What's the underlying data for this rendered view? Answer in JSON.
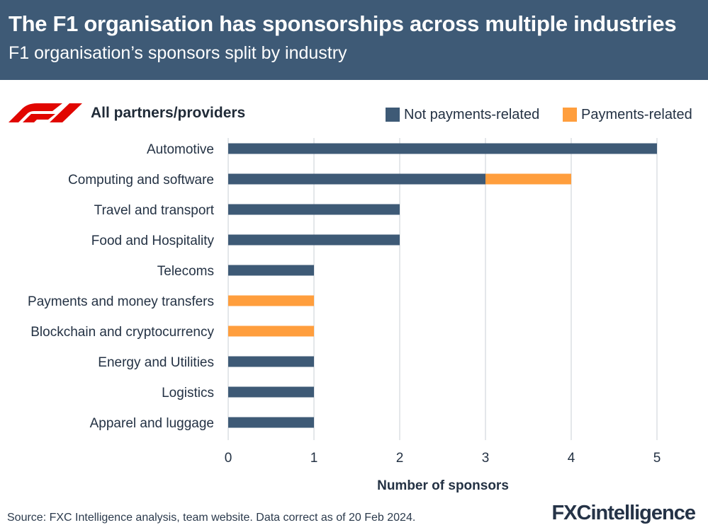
{
  "header": {
    "title": "The F1 organisation has sponsorships across multiple industries",
    "subtitle": "F1 organisation’s sponsors split by industry"
  },
  "chart_heading": "All partners/providers",
  "logo": {
    "name": "f1-logo",
    "color": "#e10600",
    "text": "F1"
  },
  "legend": [
    {
      "label": "Not payments-related",
      "color": "#3e5a76"
    },
    {
      "label": "Payments-related",
      "color": "#ff9e3d"
    }
  ],
  "chart_data": {
    "type": "bar",
    "orientation": "horizontal",
    "stacked": true,
    "categories": [
      "Automotive",
      "Computing and software",
      "Travel and transport",
      "Food and Hospitality",
      "Telecoms",
      "Payments and money transfers",
      "Blockchain and cryptocurrency",
      "Energy and Utilities",
      "Logistics",
      "Apparel and luggage"
    ],
    "series": [
      {
        "name": "Not payments-related",
        "color": "#3e5a76",
        "values": [
          5,
          3,
          2,
          2,
          1,
          0,
          0,
          1,
          1,
          1
        ]
      },
      {
        "name": "Payments-related",
        "color": "#ff9e3d",
        "values": [
          0,
          1,
          0,
          0,
          0,
          1,
          1,
          0,
          0,
          0
        ]
      }
    ],
    "xlabel": "Number of sponsors",
    "xlim": [
      0,
      5
    ],
    "xticks": [
      0,
      1,
      2,
      3,
      4,
      5
    ],
    "grid": true,
    "legend_position": "top-right"
  },
  "footer": {
    "source": "Source: FXC Intelligence analysis, team website. Data correct as of 20 Feb 2024.",
    "brand": "FXCintelligence"
  }
}
